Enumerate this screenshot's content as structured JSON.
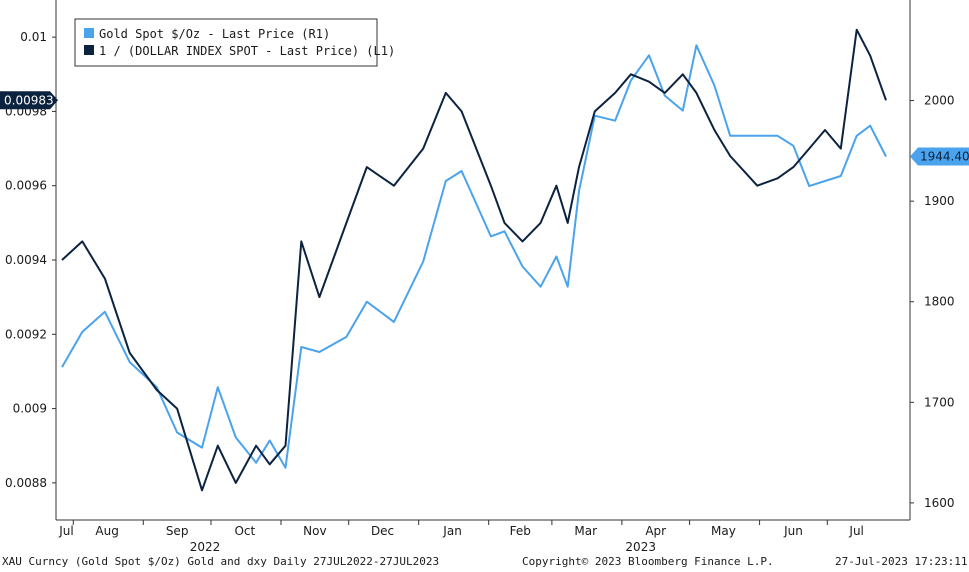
{
  "colors": {
    "gold": "#4aa3ec",
    "dxy": "#0c2340",
    "axis": "#333333",
    "bg": "#ffffff"
  },
  "legend": {
    "gold_label": "Gold Spot $/Oz - Last Price (R1)",
    "dxy_label": "1 / (DOLLAR INDEX SPOT - Last Price) (L1)"
  },
  "footer": {
    "left": "XAU Curncy (Gold Spot  $/Oz) Gold and dxy  Daily 27JUL2022-27JUL2023",
    "center": "Copyright© 2023 Bloomberg Finance L.P.",
    "right": "27-Jul-2023 17:23:11"
  },
  "chart_data": {
    "type": "line",
    "title": "Gold and dxy",
    "x_label_months": [
      "Jul",
      "Aug",
      "Sep",
      "Oct",
      "Nov",
      "Dec",
      "Jan",
      "Feb",
      "Mar",
      "Apr",
      "May",
      "Jun",
      "Jul"
    ],
    "x_label_years": [
      "2022",
      "2023"
    ],
    "left_axis": {
      "ylim": [
        0.0087,
        0.0101
      ],
      "ticks": [
        0.0088,
        0.009,
        0.0092,
        0.0094,
        0.0096,
        0.0098,
        0.01
      ],
      "tick_labels": [
        "0.0088",
        "0.009",
        "0.0092",
        "0.0094",
        "0.0096",
        "0.0098",
        "0.01"
      ]
    },
    "right_axis": {
      "ylim": [
        1583,
        2100
      ],
      "ticks": [
        1600,
        1700,
        1800,
        1900,
        2000
      ],
      "tick_labels": [
        "1600",
        "1700",
        "1800",
        "1900",
        "2000"
      ]
    },
    "last_value_flags": {
      "left": "0.00983",
      "right": "1944.40"
    },
    "x": [
      "2022-07-27",
      "2022-08-05",
      "2022-08-15",
      "2022-08-26",
      "2022-09-07",
      "2022-09-16",
      "2022-09-27",
      "2022-10-04",
      "2022-10-12",
      "2022-10-21",
      "2022-10-27",
      "2022-11-03",
      "2022-11-10",
      "2022-11-18",
      "2022-11-30",
      "2022-12-09",
      "2022-12-21",
      "2023-01-03",
      "2023-01-13",
      "2023-01-20",
      "2023-02-02",
      "2023-02-08",
      "2023-02-16",
      "2023-02-24",
      "2023-03-03",
      "2023-03-08",
      "2023-03-13",
      "2023-03-20",
      "2023-03-29",
      "2023-04-05",
      "2023-04-13",
      "2023-04-20",
      "2023-04-28",
      "2023-05-04",
      "2023-05-12",
      "2023-05-19",
      "2023-05-31",
      "2023-06-09",
      "2023-06-16",
      "2023-06-23",
      "2023-06-30",
      "2023-07-07",
      "2023-07-14",
      "2023-07-20",
      "2023-07-27"
    ],
    "series": [
      {
        "name": "Gold Spot $/Oz - Last Price (R1)",
        "axis": "right",
        "values": [
          1735,
          1770,
          1790,
          1740,
          1715,
          1670,
          1655,
          1715,
          1665,
          1640,
          1662,
          1635,
          1755,
          1750,
          1765,
          1800,
          1780,
          1840,
          1920,
          1930,
          1865,
          1870,
          1835,
          1815,
          1845,
          1815,
          1910,
          1985,
          1980,
          2020,
          2045,
          2005,
          1990,
          2055,
          2015,
          1965,
          1965,
          1965,
          1955,
          1915,
          1920,
          1925,
          1965,
          1975,
          1944.4
        ]
      },
      {
        "name": "1 / (DOLLAR INDEX SPOT - Last Price) (L1)",
        "axis": "left",
        "values": [
          0.0094,
          0.00945,
          0.00935,
          0.00915,
          0.00905,
          0.009,
          0.00878,
          0.0089,
          0.0088,
          0.0089,
          0.00885,
          0.0089,
          0.00945,
          0.0093,
          0.0095,
          0.00965,
          0.0096,
          0.0097,
          0.00985,
          0.0098,
          0.0096,
          0.0095,
          0.00945,
          0.0095,
          0.0096,
          0.0095,
          0.00965,
          0.0098,
          0.00985,
          0.0099,
          0.00988,
          0.00985,
          0.0099,
          0.00985,
          0.00975,
          0.00968,
          0.0096,
          0.00962,
          0.00965,
          0.0097,
          0.00975,
          0.0097,
          0.01002,
          0.00995,
          0.00983
        ]
      }
    ]
  }
}
